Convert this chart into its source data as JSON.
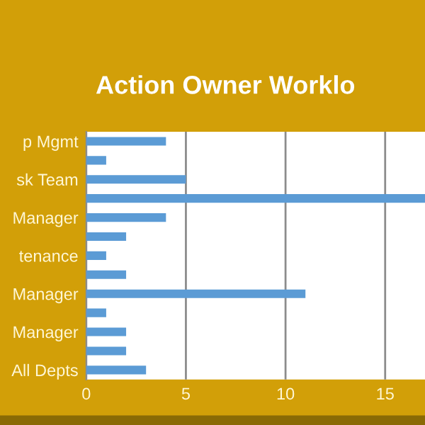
{
  "chart_data": {
    "type": "bar",
    "orientation": "horizontal",
    "title": "Action Owner Worklo",
    "categories": [
      "p Mgmt",
      null,
      "sk Team",
      null,
      "Manager",
      null,
      "tenance",
      null,
      "Manager",
      null,
      "Manager",
      null,
      "All Depts"
    ],
    "values": [
      4,
      1,
      5,
      17,
      4,
      2,
      1,
      2,
      11,
      1,
      2,
      2,
      3
    ],
    "color": "#5b9bd5",
    "xlim": [
      0,
      17
    ],
    "xticks": [
      0,
      5,
      10,
      15
    ],
    "grid": "x",
    "legend": false
  }
}
